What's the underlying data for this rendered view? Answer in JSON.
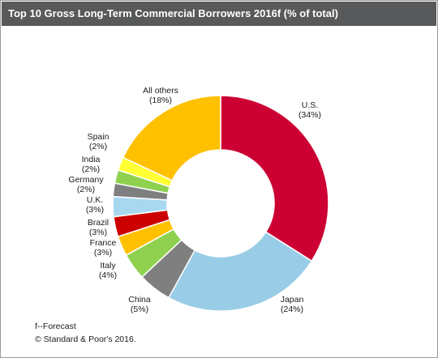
{
  "title": "Top 10 Gross  Long-Term Commercial Borrowers 2016f (% of total)",
  "footnote": "f--Forecast",
  "copyright": "© Standard & Poor's 2016.",
  "chart_data": {
    "type": "pie",
    "donut": true,
    "title": "Top 10 Gross  Long-Term Commercial Borrowers 2016f (% of total)",
    "categories": [
      "U.S.",
      "Japan",
      "China",
      "Italy",
      "France",
      "Brazil",
      "U.K.",
      "Germany",
      "India",
      "Spain",
      "All others"
    ],
    "values": [
      34,
      24,
      5,
      4,
      3,
      3,
      3,
      2,
      2,
      2,
      18
    ],
    "value_labels": [
      "(34%)",
      "(24%)",
      "(5%)",
      "(4%)",
      "(3%)",
      "(3%)",
      "(3%)",
      "(2%)",
      "(2%)",
      "(2%)",
      "(18%)"
    ],
    "colors": [
      "#cc0033",
      "#99cce6",
      "#7f7f7f",
      "#8fd14f",
      "#ffc000",
      "#cc0000",
      "#a8d8f0",
      "#7f7f7f",
      "#8fd14f",
      "#ffff33",
      "#ffc000"
    ]
  }
}
